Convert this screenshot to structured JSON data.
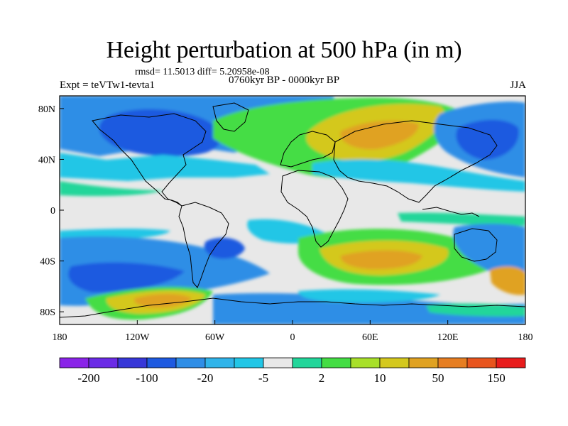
{
  "title": "Height perturbation at 500 hPa (in m)",
  "stats": "rmsd= 11.5013 diff= 5.20958e-08",
  "period": "0760kyr BP - 0000kyr BP",
  "experiment": "Expt = teVTw1-tevta1",
  "season": "JJA",
  "axes": {
    "lon_labels": [
      "180",
      "120W",
      "60W",
      "0",
      "60E",
      "120E",
      "180"
    ],
    "lat_labels": [
      "80N",
      "40N",
      "0",
      "40S",
      "80S"
    ]
  },
  "colorbar": {
    "colors": [
      "#8a24e8",
      "#6b2be6",
      "#3737d8",
      "#1e5ae0",
      "#2f8ee6",
      "#30b4ea",
      "#22c6e6",
      "#e8e8e8",
      "#22d69a",
      "#44dd44",
      "#a8e02a",
      "#d4c81e",
      "#e0a222",
      "#e67e22",
      "#e8551e",
      "#e81c1c"
    ],
    "labels": [
      "-200",
      "-100",
      "-20",
      "-5",
      "2",
      "10",
      "50",
      "150"
    ]
  },
  "palette": {
    "strong_negative": "#1e5ae0",
    "negative": "#2f8ee6",
    "weak_negative": "#22c6e6",
    "neutral": "#e8e8e8",
    "weak_positive": "#22d69a",
    "positive": "#44dd44",
    "strong_positive": "#d4c81e",
    "max_positive": "#e0a222"
  }
}
